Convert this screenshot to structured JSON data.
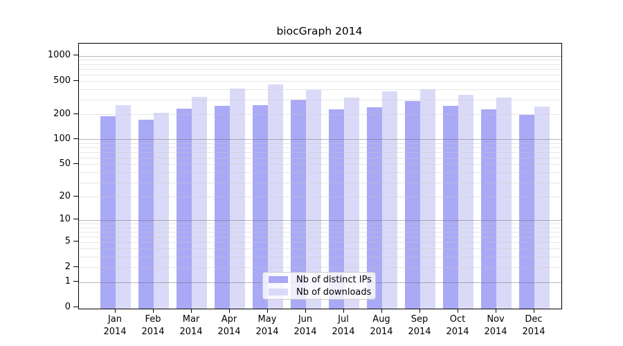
{
  "chart_data": {
    "type": "bar",
    "title": "biocGraph 2014",
    "categories": [
      "Jan",
      "Feb",
      "Mar",
      "Apr",
      "May",
      "Jun",
      "Jul",
      "Aug",
      "Sep",
      "Oct",
      "Nov",
      "Dec"
    ],
    "category_year": "2014",
    "series": [
      {
        "name": "Nb of distinct IPs",
        "color": "#a9a9f6",
        "values": [
          190,
          173,
          235,
          253,
          258,
          300,
          230,
          245,
          290,
          253,
          230,
          198
        ]
      },
      {
        "name": "Nb of downloads",
        "color": "#dadaf8",
        "values": [
          258,
          210,
          325,
          405,
          458,
          393,
          317,
          378,
          400,
          344,
          320,
          249
        ]
      }
    ],
    "xlabel": "",
    "ylabel": "",
    "yscale": "log1p",
    "ylim": [
      0,
      1400
    ],
    "yticks": [
      0,
      1,
      2,
      5,
      10,
      20,
      50,
      100,
      200,
      500,
      1000
    ],
    "grid": {
      "on": true,
      "drawn_over_bars": true,
      "major_values": [
        1,
        10,
        100,
        1000
      ],
      "minor_values": [
        2,
        3,
        4,
        5,
        6,
        7,
        8,
        9,
        20,
        30,
        40,
        50,
        60,
        70,
        80,
        90,
        200,
        300,
        400,
        500,
        600,
        700,
        800,
        900
      ]
    },
    "legend_position": "lower center",
    "colors": {
      "axis": "#000000",
      "grid_major": "#6e6e6e",
      "grid_minor": "#c8c8c8",
      "background": "#ffffff"
    }
  }
}
